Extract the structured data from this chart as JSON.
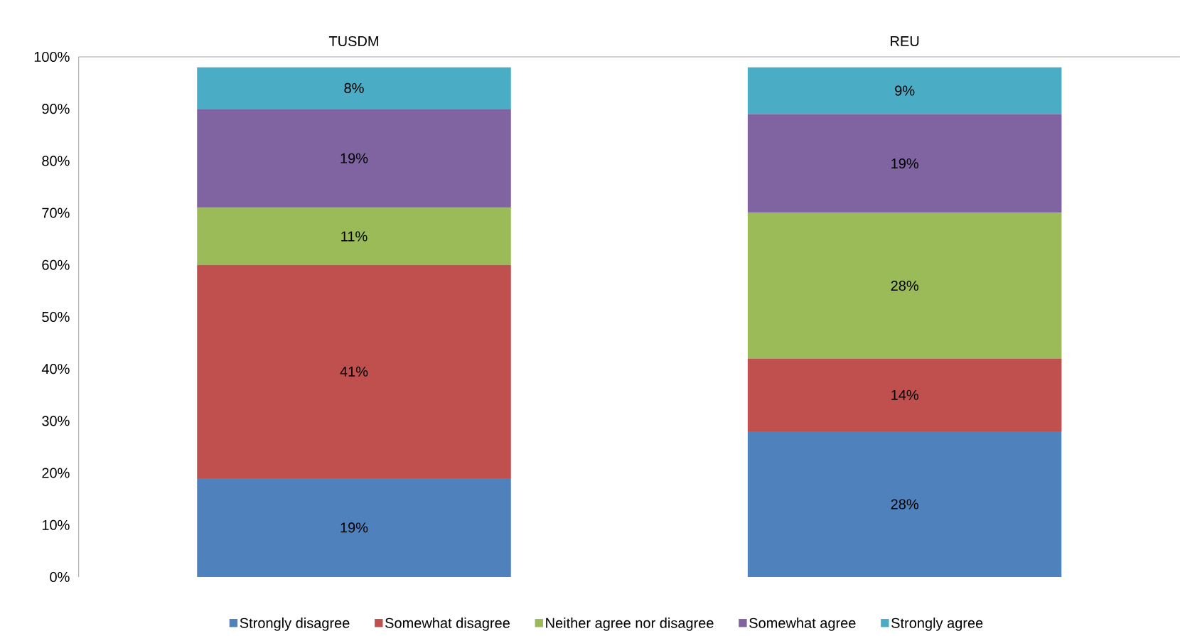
{
  "chart_data": {
    "type": "bar",
    "stacked": true,
    "categories": [
      "TUSDM",
      "REU"
    ],
    "series": [
      {
        "name": "Strongly disagree",
        "color": "#4f81bd",
        "values": [
          19,
          28
        ],
        "value_labels": [
          "19%",
          "28%"
        ]
      },
      {
        "name": "Somewhat disagree",
        "color": "#c0504d",
        "values": [
          41,
          14
        ],
        "value_labels": [
          "41%",
          "14%"
        ]
      },
      {
        "name": "Neither agree nor disagree",
        "color": "#9bbb59",
        "values": [
          11,
          28
        ],
        "value_labels": [
          "11%",
          "28%"
        ]
      },
      {
        "name": "Somewhat agree",
        "color": "#8064a2",
        "values": [
          19,
          19
        ],
        "value_labels": [
          "19%",
          "19%"
        ]
      },
      {
        "name": "Strongly agree",
        "color": "#4bacc6",
        "values": [
          8,
          9
        ],
        "value_labels": [
          "8%",
          "9%"
        ]
      }
    ],
    "ylim": [
      0,
      100
    ],
    "yticks": [
      {
        "value": 0,
        "label": "0%"
      },
      {
        "value": 10,
        "label": "10%"
      },
      {
        "value": 20,
        "label": "20%"
      },
      {
        "value": 30,
        "label": "30%"
      },
      {
        "value": 40,
        "label": "40%"
      },
      {
        "value": 50,
        "label": "50%"
      },
      {
        "value": 60,
        "label": "60%"
      },
      {
        "value": 70,
        "label": "70%"
      },
      {
        "value": 80,
        "label": "80%"
      },
      {
        "value": 90,
        "label": "90%"
      },
      {
        "value": 100,
        "label": "100%"
      }
    ],
    "legend": "bottom"
  }
}
